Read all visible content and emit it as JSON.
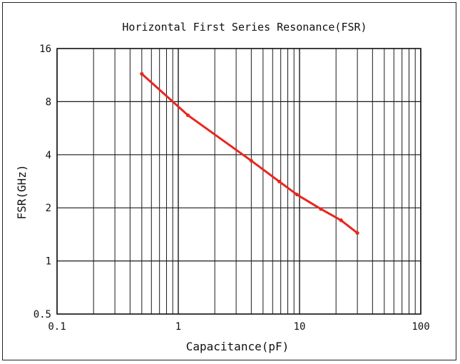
{
  "chart_data": {
    "type": "line",
    "title": "Horizontal First Series Resonance(FSR)",
    "xlabel": "Capacitance(pF)",
    "ylabel": "FSR(GHz)",
    "x_scale": "log",
    "y_scale": "log",
    "xlim": [
      0.1,
      100
    ],
    "ylim": [
      0.5,
      16
    ],
    "x_ticks": [
      0.1,
      1,
      10,
      100
    ],
    "x_tick_labels": [
      "0.1",
      "1",
      "10",
      "100"
    ],
    "y_ticks": [
      0.5,
      1,
      2,
      4,
      8,
      16
    ],
    "y_tick_labels": [
      "0.5",
      "1",
      "2",
      "4",
      "8",
      "16"
    ],
    "grid": true,
    "series": [
      {
        "color": "#e8261d",
        "x": [
          0.5,
          1.2,
          4.0,
          6.8,
          9.5,
          15,
          22,
          30
        ],
        "y": [
          11.5,
          6.7,
          3.7,
          2.82,
          2.38,
          1.97,
          1.7,
          1.44
        ]
      }
    ]
  }
}
